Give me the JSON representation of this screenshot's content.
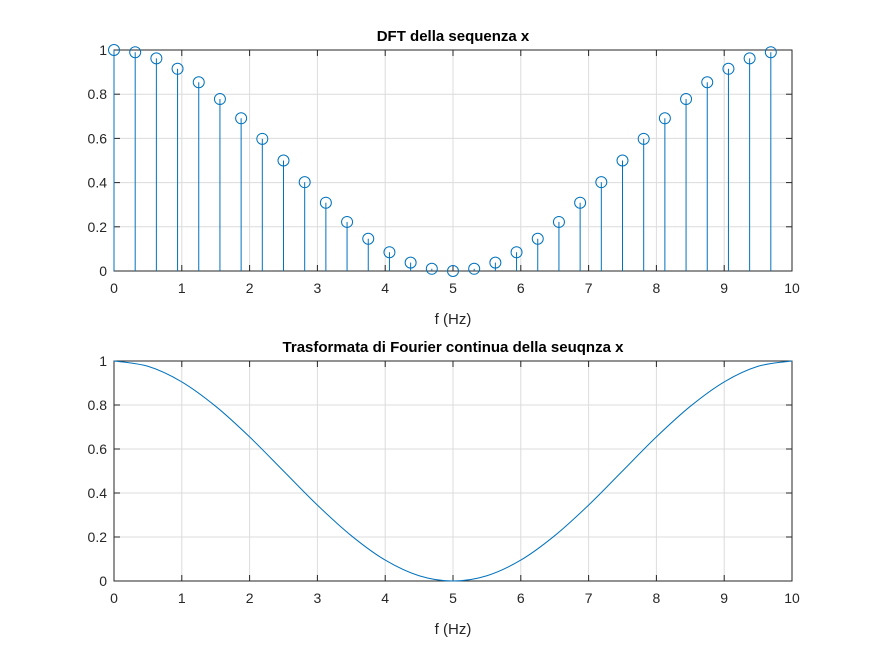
{
  "chart_data": [
    {
      "type": "stem",
      "title": "DFT della sequenza x",
      "xlabel": "f (Hz)",
      "ylabel": "",
      "xlim": [
        0,
        10
      ],
      "ylim": [
        0,
        1
      ],
      "xticks": [
        "0",
        "1",
        "2",
        "3",
        "4",
        "5",
        "6",
        "7",
        "8",
        "9",
        "10"
      ],
      "yticks": [
        "0",
        "0.2",
        "0.4",
        "0.6",
        "0.8",
        "1"
      ],
      "grid": true,
      "color": "#0072BD",
      "series": [
        {
          "x": [
            0,
            0.3125,
            0.625,
            0.9375,
            1.25,
            1.5625,
            1.875,
            2.1875,
            2.5,
            2.8125,
            3.125,
            3.4375,
            3.75,
            4.0625,
            4.375,
            4.6875,
            5,
            5.3125,
            5.625,
            5.9375,
            6.25,
            6.5625,
            6.875,
            7.1875,
            7.5,
            7.8125,
            8.125,
            8.4375,
            8.75,
            9.0625,
            9.375,
            9.6875
          ],
          "values": [
            1,
            0.99,
            0.962,
            0.915,
            0.854,
            0.778,
            0.691,
            0.598,
            0.5,
            0.402,
            0.309,
            0.222,
            0.146,
            0.085,
            0.038,
            0.01,
            0,
            0.01,
            0.038,
            0.085,
            0.146,
            0.222,
            0.309,
            0.402,
            0.5,
            0.598,
            0.691,
            0.778,
            0.854,
            0.915,
            0.962,
            0.99
          ]
        }
      ]
    },
    {
      "type": "line",
      "title": "Trasformata di Fourier continua della seuqnza x",
      "xlabel": "f (Hz)",
      "ylabel": "",
      "xlim": [
        0,
        10
      ],
      "ylim": [
        0,
        1
      ],
      "xticks": [
        "0",
        "1",
        "2",
        "3",
        "4",
        "5",
        "6",
        "7",
        "8",
        "9",
        "10"
      ],
      "yticks": [
        "0",
        "0.2",
        "0.4",
        "0.6",
        "0.8",
        "1"
      ],
      "grid": true,
      "color": "#0072BD",
      "series": [
        {
          "x": [
            0,
            0.5,
            1,
            1.5,
            2,
            2.5,
            3,
            3.5,
            4,
            4.5,
            5,
            5.5,
            6,
            6.5,
            7,
            7.5,
            8,
            8.5,
            9,
            9.5,
            10
          ],
          "values": [
            1,
            0.976,
            0.905,
            0.794,
            0.655,
            0.5,
            0.345,
            0.206,
            0.095,
            0.024,
            0,
            0.024,
            0.095,
            0.206,
            0.345,
            0.5,
            0.655,
            0.794,
            0.905,
            0.976,
            1
          ]
        }
      ]
    }
  ]
}
